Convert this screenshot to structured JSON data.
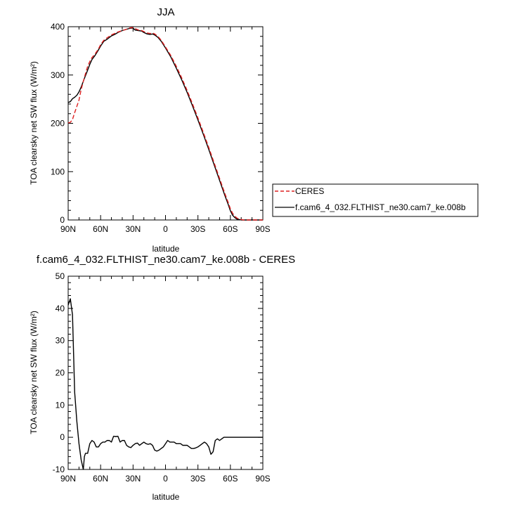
{
  "chart_data": [
    {
      "type": "line",
      "title": "JJA",
      "xlabel": "latitude",
      "ylabel": "TOA clearsky net SW flux (W/m²)",
      "xlim": [
        -90,
        90
      ],
      "ylim": [
        0,
        400
      ],
      "xticks": [
        -90,
        -60,
        -30,
        0,
        30,
        60,
        90
      ],
      "xtick_labels": [
        "90N",
        "60N",
        "30N",
        "0",
        "30S",
        "60S",
        "90S"
      ],
      "yticks": [
        0,
        100,
        200,
        300,
        400
      ],
      "ytick_labels": [
        "0",
        "100",
        "200",
        "300",
        "400"
      ],
      "grid": false,
      "legend_position": "right",
      "series": [
        {
          "name": "CERES",
          "color": "#dd2020",
          "dash": "dashed",
          "x": [
            -90,
            -88,
            -86,
            -84,
            -82,
            -80,
            -78,
            -75,
            -72,
            -70,
            -68,
            -65,
            -62,
            -60,
            -57,
            -54,
            -50,
            -47,
            -44,
            -40,
            -37,
            -34,
            -32,
            -30,
            -28,
            -25,
            -22,
            -20,
            -17,
            -14,
            -12,
            -10,
            -7,
            -4,
            0,
            5,
            10,
            15,
            20,
            25,
            30,
            35,
            40,
            45,
            50,
            55,
            58,
            60,
            62,
            64,
            66,
            68,
            70,
            72,
            75,
            78,
            80,
            85,
            90
          ],
          "y": [
            201,
            202,
            208,
            222,
            235,
            248,
            270,
            295,
            318,
            328,
            336,
            344,
            354,
            363,
            372,
            377,
            383,
            386,
            389,
            392,
            394,
            397,
            398,
            398,
            396,
            393,
            392,
            390,
            387,
            386,
            387,
            385,
            380,
            372,
            358,
            340,
            318,
            294,
            268,
            240,
            211,
            181,
            150,
            118,
            86,
            54,
            36,
            23,
            14,
            8,
            4,
            2,
            1,
            0,
            0,
            0,
            0,
            0,
            0
          ]
        },
        {
          "name": "f.cam6_4_032.FLTHIST_ne30.cam7_ke.008b",
          "color": "#000000",
          "dash": "solid",
          "x": [
            -90,
            -88,
            -86,
            -84,
            -82,
            -80,
            -78,
            -75,
            -72,
            -70,
            -68,
            -65,
            -62,
            -60,
            -57,
            -54,
            -50,
            -47,
            -44,
            -40,
            -37,
            -34,
            -32,
            -30,
            -28,
            -25,
            -22,
            -20,
            -17,
            -14,
            -12,
            -10,
            -7,
            -4,
            0,
            5,
            10,
            15,
            20,
            25,
            30,
            35,
            40,
            45,
            50,
            55,
            58,
            60,
            62,
            64,
            66,
            68,
            70,
            72,
            75,
            78,
            80,
            85,
            90
          ],
          "y": [
            243,
            245,
            251,
            254,
            258,
            265,
            275,
            293,
            310,
            322,
            332,
            341,
            352,
            360,
            370,
            374,
            381,
            384,
            388,
            392,
            394,
            396,
            397,
            397,
            393,
            392,
            391,
            388,
            385,
            384,
            385,
            383,
            378,
            370,
            356,
            337,
            314,
            290,
            264,
            236,
            207,
            177,
            146,
            114,
            82,
            50,
            32,
            19,
            10,
            5,
            2,
            1,
            0,
            0,
            0,
            0,
            0,
            0,
            0
          ]
        }
      ]
    },
    {
      "type": "line",
      "title": "f.cam6_4_032.FLTHIST_ne30.cam7_ke.008b - CERES",
      "xlabel": "latitude",
      "ylabel": "TOA clearsky net SW flux (W/m²)",
      "xlim": [
        -90,
        90
      ],
      "ylim": [
        -10,
        50
      ],
      "xticks": [
        -90,
        -60,
        -30,
        0,
        30,
        60,
        90
      ],
      "xtick_labels": [
        "90N",
        "60N",
        "30N",
        "0",
        "30S",
        "60S",
        "90S"
      ],
      "yticks": [
        -10,
        0,
        10,
        20,
        30,
        40,
        50
      ],
      "ytick_labels": [
        "-10",
        "0",
        "10",
        "20",
        "30",
        "40",
        "50"
      ],
      "grid": false,
      "series": [
        {
          "color": "#000000",
          "dash": "solid",
          "x": [
            -90,
            -88,
            -86,
            -84,
            -82,
            -80,
            -78,
            -76,
            -75,
            -74,
            -72,
            -70,
            -68,
            -66,
            -64,
            -62,
            -60,
            -58,
            -56,
            -54,
            -52,
            -50,
            -48,
            -46,
            -44,
            -42,
            -40,
            -38,
            -36,
            -34,
            -32,
            -30,
            -28,
            -26,
            -24,
            -22,
            -20,
            -18,
            -16,
            -14,
            -12,
            -10,
            -8,
            -6,
            -4,
            -2,
            0,
            2,
            4,
            6,
            8,
            10,
            12,
            14,
            16,
            18,
            20,
            22,
            24,
            26,
            28,
            30,
            32,
            34,
            36,
            38,
            40,
            42,
            44,
            46,
            48,
            50,
            52,
            54,
            56,
            58,
            60,
            62,
            64,
            65,
            66,
            68,
            70,
            72,
            74,
            76,
            78,
            80,
            85,
            90
          ],
          "y": [
            41,
            43,
            38,
            14,
            5,
            -2,
            -7,
            -10,
            -6,
            -5,
            -5,
            -2,
            -1,
            -1.5,
            -3,
            -3,
            -2,
            -1.5,
            -1.5,
            -1,
            -1,
            -1.5,
            0.3,
            0.2,
            0.3,
            -1.5,
            -1,
            -1,
            -2.5,
            -3,
            -3.2,
            -2.5,
            -2,
            -1.8,
            -2.5,
            -2,
            -1.5,
            -2,
            -2.2,
            -2,
            -2.5,
            -4,
            -4.3,
            -4,
            -3.5,
            -3,
            -2,
            -1,
            -1.5,
            -1.5,
            -1.5,
            -2,
            -2,
            -2,
            -2.5,
            -2.5,
            -2.5,
            -3,
            -3.5,
            -3.5,
            -3.3,
            -3,
            -2.5,
            -2,
            -1.5,
            -2,
            -3,
            -5.3,
            -4.5,
            -1,
            -0.5,
            -1,
            -0.5,
            0,
            0,
            0,
            0,
            0,
            0,
            0,
            0,
            0,
            0,
            0,
            0,
            0,
            0,
            0,
            0,
            0
          ]
        }
      ]
    }
  ]
}
